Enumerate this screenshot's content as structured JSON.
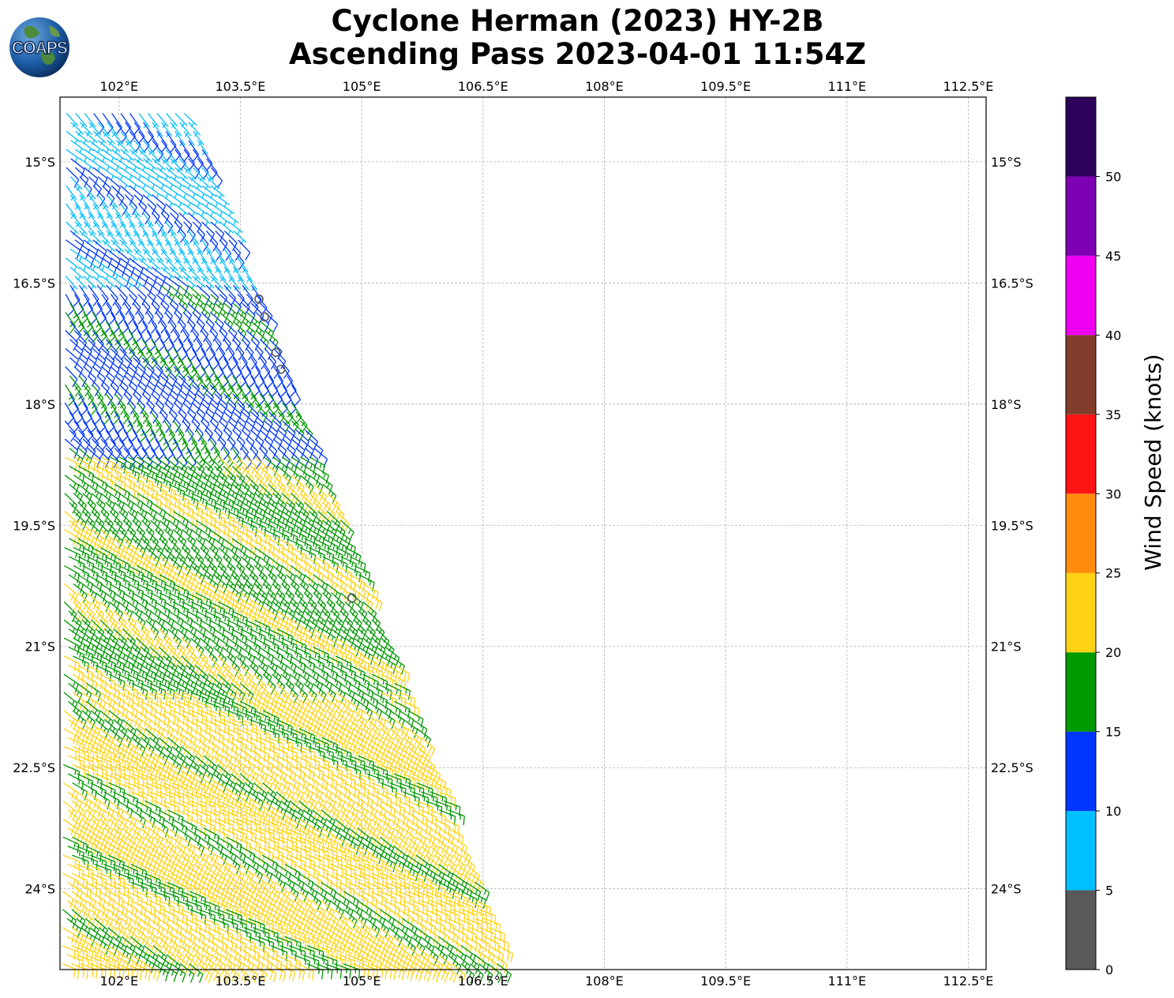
{
  "title_line1": "Cyclone Herman (2023) HY-2B",
  "title_line2": "Ascending Pass 2023-04-01 11:54Z",
  "logo_text": "COAPS",
  "lon_ticks": [
    {
      "value": 102,
      "label": "102°E"
    },
    {
      "value": 103.5,
      "label": "103.5°E"
    },
    {
      "value": 105,
      "label": "105°E"
    },
    {
      "value": 106.5,
      "label": "106.5°E"
    },
    {
      "value": 108,
      "label": "108°E"
    },
    {
      "value": 109.5,
      "label": "109.5°E"
    },
    {
      "value": 111,
      "label": "111°E"
    },
    {
      "value": 112.5,
      "label": "112.5°E"
    }
  ],
  "lat_ticks": [
    {
      "value": -15,
      "label": "15°S"
    },
    {
      "value": -16.5,
      "label": "16.5°S"
    },
    {
      "value": -18,
      "label": "18°S"
    },
    {
      "value": -19.5,
      "label": "19.5°S"
    },
    {
      "value": -21,
      "label": "21°S"
    },
    {
      "value": -22.5,
      "label": "22.5°S"
    },
    {
      "value": -24,
      "label": "24°S"
    }
  ],
  "map_extent": {
    "lon_min": 101.27,
    "lon_max": 112.72,
    "lat_max": -14.2,
    "lat_min": -25.0
  },
  "colorbar": {
    "label": "Wind Speed (knots)",
    "bins": [
      {
        "min": 0,
        "max": 5,
        "color": "#595959"
      },
      {
        "min": 5,
        "max": 10,
        "color": "#00bfff"
      },
      {
        "min": 10,
        "max": 15,
        "color": "#0036ff"
      },
      {
        "min": 15,
        "max": 20,
        "color": "#009900"
      },
      {
        "min": 20,
        "max": 25,
        "color": "#ffd314"
      },
      {
        "min": 25,
        "max": 30,
        "color": "#ff8c0d"
      },
      {
        "min": 30,
        "max": 35,
        "color": "#ff1414"
      },
      {
        "min": 35,
        "max": 40,
        "color": "#823c2b"
      },
      {
        "min": 40,
        "max": 45,
        "color": "#f000f0"
      },
      {
        "min": 45,
        "max": 50,
        "color": "#7d00b3"
      },
      {
        "min": 50,
        "max": 55,
        "color": "#2d0059"
      }
    ],
    "tick_labels": [
      "0",
      "5",
      "10",
      "15",
      "20",
      "25",
      "30",
      "35",
      "40",
      "45",
      "50"
    ]
  },
  "chart_data": {
    "type": "wind_barbs",
    "swath": {
      "east_edge": [
        {
          "lat": -14.4,
          "lon": 102.9
        },
        {
          "lat": -25.0,
          "lon": 106.8
        }
      ],
      "west_edge": [
        {
          "lat": -14.4,
          "lon": 101.35
        },
        {
          "lat": -25.0,
          "lon": 101.3
        }
      ]
    },
    "wind_zones": [
      {
        "lat_from": -14.4,
        "lat_to": -16.5,
        "speed_knots": 8,
        "direction_deg": 135,
        "category": "5-10"
      },
      {
        "lat_from": -16.5,
        "lat_to": -18.6,
        "speed_knots": 13,
        "direction_deg": 140,
        "category": "10-15"
      },
      {
        "lat_from": -18.6,
        "lat_to": -21.5,
        "speed_knots": 18,
        "direction_deg": 125,
        "category": "15-20"
      },
      {
        "lat_from": -21.5,
        "lat_to": -25.0,
        "speed_knots": 22,
        "direction_deg": 120,
        "category": "20-25"
      }
    ],
    "calm_points": [
      {
        "lon": 103.73,
        "lat": -16.7
      },
      {
        "lon": 103.8,
        "lat": -16.92
      },
      {
        "lon": 103.94,
        "lat": -17.36
      },
      {
        "lon": 104.0,
        "lat": -17.57
      },
      {
        "lon": 104.88,
        "lat": -20.4
      }
    ]
  }
}
